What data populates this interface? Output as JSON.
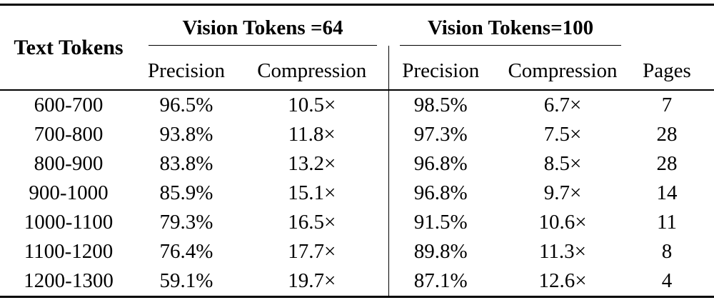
{
  "table": {
    "corner_header": "Text Tokens",
    "pages_header": "Pages",
    "groups": [
      {
        "label": "Vision Tokens =64",
        "columns": [
          "Precision",
          "Compression"
        ]
      },
      {
        "label": "Vision Tokens=100",
        "columns": [
          "Precision",
          "Compression"
        ]
      }
    ],
    "rows": [
      [
        "600-700",
        "96.5%",
        "10.5×",
        "98.5%",
        "6.7×",
        "7"
      ],
      [
        "700-800",
        "93.8%",
        "11.8×",
        "97.3%",
        "7.5×",
        "28"
      ],
      [
        "800-900",
        "83.8%",
        "13.2×",
        "96.8%",
        "8.5×",
        "28"
      ],
      [
        "900-1000",
        "85.9%",
        "15.1×",
        "96.8%",
        "9.7×",
        "14"
      ],
      [
        "1000-1100",
        "79.3%",
        "16.5×",
        "91.5%",
        "10.6×",
        "11"
      ],
      [
        "1100-1200",
        "76.4%",
        "17.7×",
        "89.8%",
        "11.3×",
        "8"
      ],
      [
        "1200-1300",
        "59.1%",
        "19.7×",
        "87.1%",
        "12.6×",
        "4"
      ]
    ],
    "colors": {
      "text": "#000000",
      "rule": "#000000",
      "background": "#ffffff"
    }
  },
  "chart_data": {
    "type": "table",
    "row_label": "Text Tokens",
    "categories": [
      "600-700",
      "700-800",
      "800-900",
      "900-1000",
      "1000-1100",
      "1100-1200",
      "1200-1300"
    ],
    "series": [
      {
        "name": "Vision Tokens =64 Precision (%)",
        "values": [
          96.5,
          93.8,
          83.8,
          85.9,
          79.3,
          76.4,
          59.1
        ]
      },
      {
        "name": "Vision Tokens =64 Compression (x)",
        "values": [
          10.5,
          11.8,
          13.2,
          15.1,
          16.5,
          17.7,
          19.7
        ]
      },
      {
        "name": "Vision Tokens=100 Precision (%)",
        "values": [
          98.5,
          97.3,
          96.8,
          96.8,
          91.5,
          89.8,
          87.1
        ]
      },
      {
        "name": "Vision Tokens=100 Compression (x)",
        "values": [
          6.7,
          7.5,
          8.5,
          9.7,
          10.6,
          11.3,
          12.6
        ]
      },
      {
        "name": "Pages",
        "values": [
          7,
          28,
          28,
          14,
          11,
          8,
          4
        ]
      }
    ]
  }
}
